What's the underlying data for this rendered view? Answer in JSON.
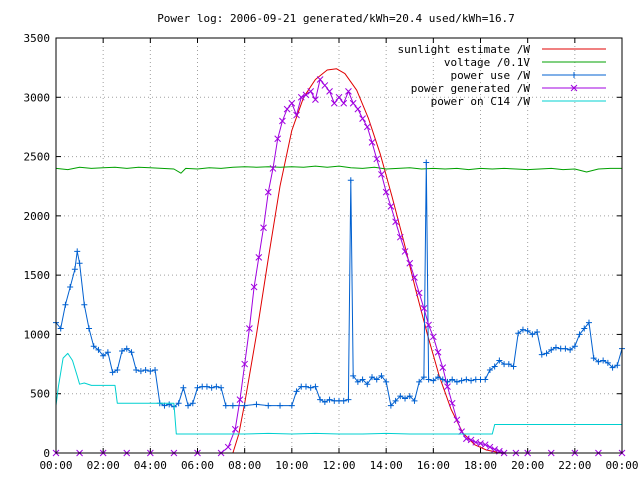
{
  "chart_data": {
    "type": "line",
    "title": "Power log: 2006-09-21 generated/kWh=20.4 used/kWh=16.7",
    "xlabel": "",
    "ylabel": "",
    "xlim": [
      0,
      24
    ],
    "ylim": [
      0,
      3500
    ],
    "x_ticks": [
      "00:00",
      "02:00",
      "04:00",
      "06:00",
      "08:00",
      "10:00",
      "12:00",
      "14:00",
      "16:00",
      "18:00",
      "20:00",
      "22:00",
      "00:00"
    ],
    "y_ticks": [
      "0",
      "500",
      "1000",
      "1500",
      "2000",
      "2500",
      "3000",
      "3500"
    ],
    "grid": true,
    "legend_position": "top-right",
    "series": [
      {
        "name": "sunlight estimate /W",
        "color": "#e00000",
        "style": "line",
        "x": [
          7.5,
          7.75,
          8.0,
          8.5,
          9.0,
          9.5,
          10.0,
          10.5,
          11.0,
          11.5,
          11.9,
          12.25,
          12.75,
          13.25,
          13.75,
          14.25,
          14.75,
          15.25,
          15.75,
          16.25,
          16.75,
          17.25,
          17.75,
          18.25,
          18.75,
          19.0
        ],
        "y": [
          0,
          160,
          420,
          1000,
          1640,
          2250,
          2720,
          3000,
          3150,
          3230,
          3240,
          3200,
          3060,
          2820,
          2520,
          2160,
          1780,
          1380,
          1000,
          650,
          370,
          170,
          70,
          25,
          5,
          0
        ]
      },
      {
        "name": "voltage /0.1V",
        "color": "#00a000",
        "style": "line",
        "x": [
          0,
          0.5,
          1.0,
          1.5,
          2.0,
          2.5,
          3.0,
          3.5,
          4.0,
          4.5,
          5.0,
          5.3,
          5.5,
          6.0,
          6.5,
          7.0,
          7.5,
          8.0,
          8.5,
          9.0,
          9.5,
          10.0,
          10.5,
          11.0,
          11.5,
          12.0,
          12.5,
          13.0,
          13.5,
          14.0,
          14.5,
          15.0,
          15.5,
          16.0,
          16.5,
          17.0,
          17.5,
          18.0,
          18.5,
          19.0,
          19.5,
          20.0,
          20.5,
          21.0,
          21.5,
          22.0,
          22.5,
          23.0,
          23.5,
          24.0
        ],
        "y": [
          2400,
          2390,
          2410,
          2400,
          2405,
          2410,
          2400,
          2410,
          2405,
          2400,
          2395,
          2360,
          2400,
          2395,
          2405,
          2400,
          2410,
          2415,
          2410,
          2415,
          2410,
          2415,
          2410,
          2420,
          2410,
          2420,
          2405,
          2400,
          2410,
          2395,
          2400,
          2405,
          2395,
          2400,
          2395,
          2400,
          2390,
          2400,
          2395,
          2400,
          2395,
          2390,
          2395,
          2400,
          2390,
          2395,
          2370,
          2395,
          2400,
          2400
        ]
      },
      {
        "name": "power use /W",
        "color": "#0060d0",
        "style": "linespoints",
        "marker": "plus",
        "x": [
          0,
          0.2,
          0.4,
          0.6,
          0.8,
          0.9,
          1.0,
          1.2,
          1.4,
          1.6,
          1.8,
          2.0,
          2.2,
          2.4,
          2.6,
          2.8,
          3.0,
          3.2,
          3.4,
          3.6,
          3.8,
          4.0,
          4.2,
          4.4,
          4.6,
          4.8,
          5.0,
          5.2,
          5.4,
          5.6,
          5.8,
          6.0,
          6.2,
          6.4,
          6.6,
          6.8,
          7.0,
          7.2,
          7.5,
          8.0,
          8.5,
          9.0,
          9.5,
          10.0,
          10.2,
          10.4,
          10.6,
          10.8,
          11.0,
          11.2,
          11.4,
          11.6,
          11.8,
          12.0,
          12.2,
          12.4,
          12.5,
          12.6,
          12.8,
          13.0,
          13.2,
          13.4,
          13.6,
          13.8,
          14.0,
          14.2,
          14.4,
          14.6,
          14.8,
          15.0,
          15.2,
          15.4,
          15.6,
          15.7,
          15.8,
          16.0,
          16.2,
          16.4,
          16.6,
          16.8,
          17.0,
          17.2,
          17.4,
          17.6,
          17.8,
          18.0,
          18.2,
          18.4,
          18.6,
          18.8,
          19.0,
          19.2,
          19.4,
          19.6,
          19.8,
          20.0,
          20.2,
          20.4,
          20.6,
          20.8,
          21.0,
          21.2,
          21.4,
          21.6,
          21.8,
          22.0,
          22.2,
          22.4,
          22.6,
          22.8,
          23.0,
          23.2,
          23.4,
          23.6,
          23.8,
          24.0
        ],
        "y": [
          1100,
          1050,
          1250,
          1400,
          1550,
          1700,
          1600,
          1250,
          1050,
          900,
          870,
          820,
          850,
          680,
          700,
          860,
          880,
          850,
          700,
          690,
          700,
          690,
          700,
          420,
          400,
          410,
          390,
          420,
          550,
          400,
          420,
          550,
          560,
          560,
          550,
          560,
          550,
          400,
          400,
          400,
          410,
          400,
          400,
          400,
          520,
          560,
          560,
          550,
          560,
          450,
          430,
          450,
          440,
          440,
          440,
          450,
          2300,
          650,
          600,
          620,
          580,
          640,
          620,
          650,
          600,
          400,
          440,
          480,
          460,
          480,
          440,
          600,
          640,
          2450,
          620,
          610,
          640,
          620,
          600,
          620,
          600,
          610,
          620,
          610,
          620,
          620,
          620,
          700,
          730,
          780,
          750,
          750,
          730,
          1010,
          1040,
          1030,
          1000,
          1020,
          830,
          840,
          870,
          890,
          880,
          880,
          870,
          900,
          1000,
          1050,
          1100,
          800,
          770,
          780,
          760,
          720,
          740,
          880
        ]
      },
      {
        "name": "power generated /W",
        "color": "#a000e0",
        "style": "linespoints",
        "marker": "cross",
        "x": [
          0,
          1.0,
          2.0,
          3.0,
          4.0,
          5.0,
          6.0,
          7.0,
          7.3,
          7.6,
          7.8,
          8.0,
          8.2,
          8.4,
          8.6,
          8.8,
          9.0,
          9.2,
          9.4,
          9.6,
          9.8,
          10.0,
          10.2,
          10.4,
          10.6,
          10.8,
          11.0,
          11.2,
          11.4,
          11.6,
          11.8,
          12.0,
          12.2,
          12.4,
          12.6,
          12.8,
          13.0,
          13.2,
          13.4,
          13.6,
          13.8,
          14.0,
          14.2,
          14.4,
          14.6,
          14.8,
          15.0,
          15.2,
          15.4,
          15.6,
          15.8,
          16.0,
          16.2,
          16.4,
          16.6,
          16.8,
          17.0,
          17.2,
          17.4,
          17.6,
          17.8,
          18.0,
          18.2,
          18.4,
          18.6,
          18.8,
          19.0,
          19.5,
          20.0,
          21.0,
          22.0,
          23.0,
          24.0
        ],
        "y": [
          0,
          0,
          0,
          0,
          0,
          0,
          0,
          0,
          50,
          200,
          450,
          750,
          1050,
          1400,
          1650,
          1900,
          2200,
          2400,
          2650,
          2800,
          2900,
          2950,
          2850,
          3000,
          3020,
          3050,
          2980,
          3150,
          3100,
          3050,
          2950,
          3000,
          2950,
          3050,
          2950,
          2900,
          2820,
          2750,
          2620,
          2480,
          2350,
          2200,
          2080,
          1950,
          1820,
          1700,
          1600,
          1480,
          1350,
          1220,
          1080,
          980,
          850,
          720,
          560,
          420,
          280,
          180,
          120,
          110,
          90,
          80,
          70,
          50,
          30,
          15,
          0,
          0,
          0,
          0,
          0,
          0,
          0
        ]
      },
      {
        "name": "power on C14 /W",
        "color": "#00d0d0",
        "style": "line",
        "x": [
          0,
          0.1,
          0.3,
          0.5,
          0.7,
          0.9,
          1.0,
          1.2,
          1.5,
          2.0,
          2.5,
          2.6,
          3.0,
          3.5,
          4.0,
          4.5,
          5.0,
          5.1,
          5.5,
          6.0,
          7.0,
          8.0,
          9.0,
          10.0,
          11.0,
          12.0,
          13.0,
          14.0,
          15.0,
          16.0,
          17.0,
          18.0,
          18.5,
          18.6,
          19.0,
          20.0,
          21.0,
          22.0,
          23.0,
          24.0
        ],
        "y": [
          400,
          560,
          800,
          840,
          780,
          650,
          580,
          590,
          570,
          570,
          570,
          420,
          420,
          420,
          420,
          420,
          420,
          160,
          160,
          160,
          160,
          160,
          165,
          160,
          165,
          160,
          160,
          165,
          160,
          160,
          160,
          160,
          160,
          240,
          240,
          240,
          240,
          240,
          240,
          240
        ]
      }
    ]
  }
}
